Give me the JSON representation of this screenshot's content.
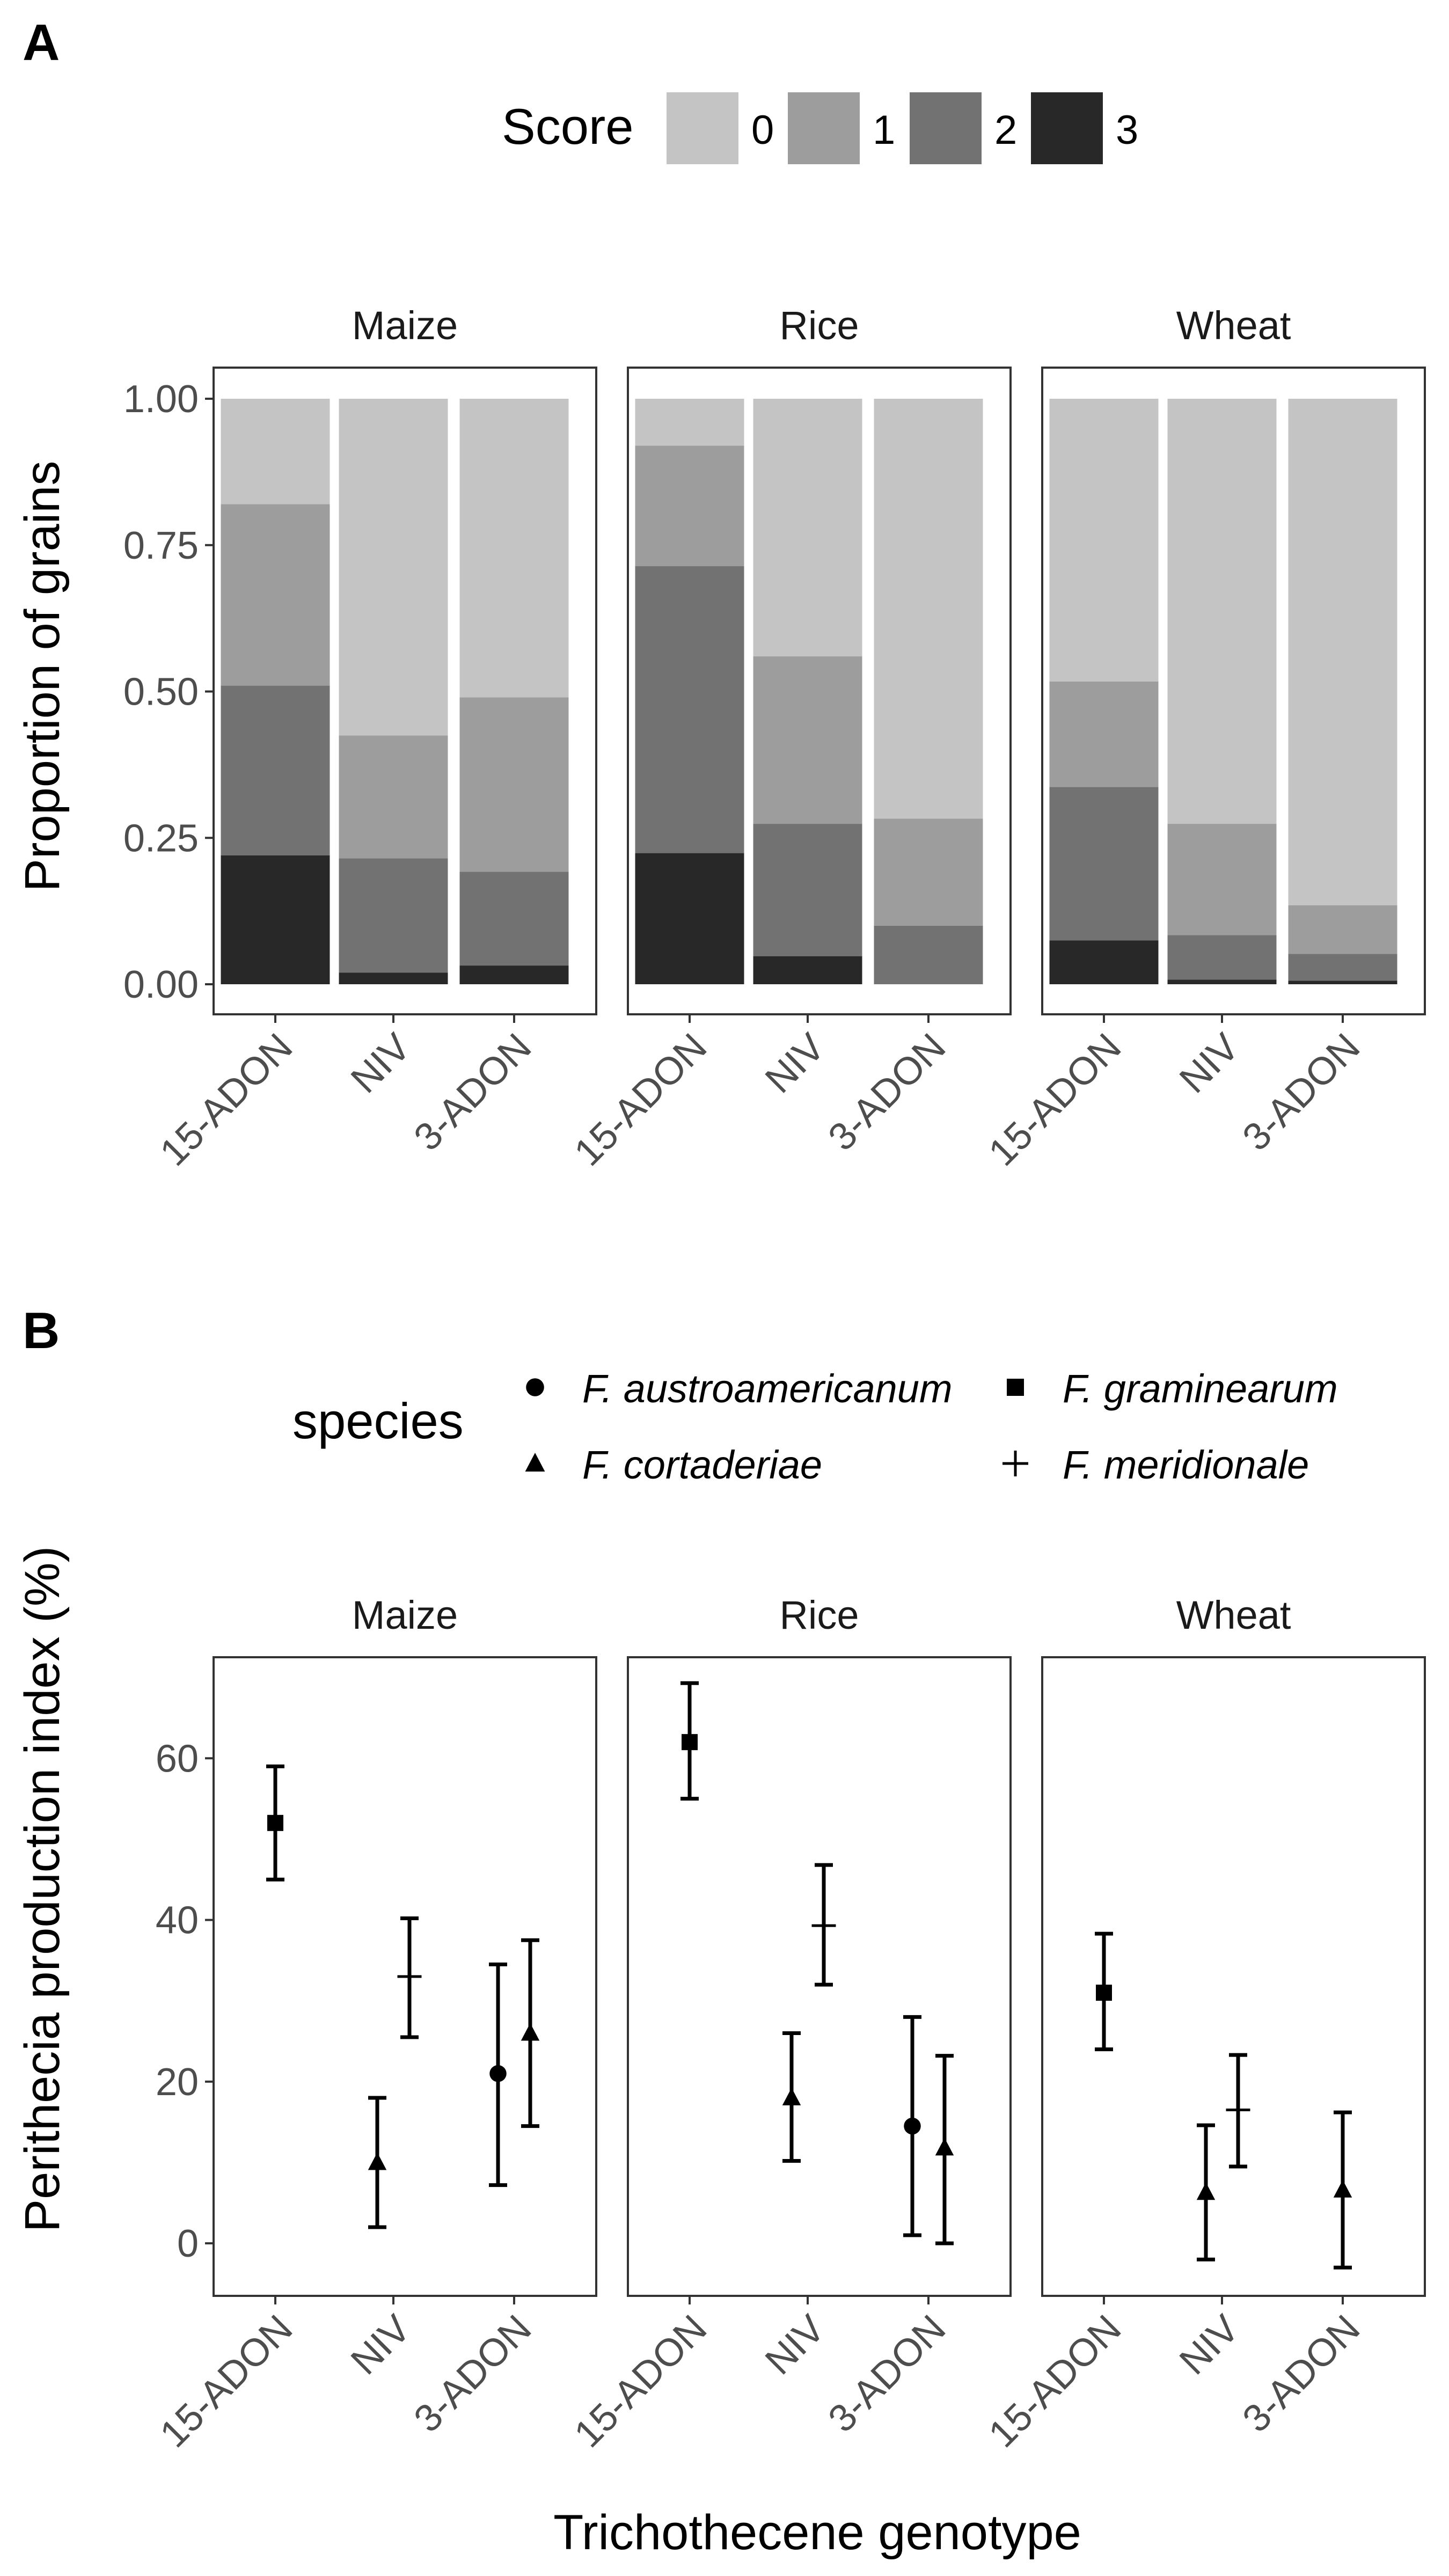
{
  "panels": {
    "a_label": "A",
    "b_label": "B"
  },
  "legend_a": {
    "title": "Score",
    "items": [
      {
        "label": "0",
        "color": "#c4c4c4"
      },
      {
        "label": "1",
        "color": "#9d9d9d"
      },
      {
        "label": "2",
        "color": "#727272"
      },
      {
        "label": "3",
        "color": "#282828"
      }
    ]
  },
  "legend_b": {
    "title": "species",
    "items": [
      {
        "label": "F. austroamericanum",
        "shape": "circle"
      },
      {
        "label": "F. graminearum",
        "shape": "square"
      },
      {
        "label": "F. cortaderiae",
        "shape": "triangle"
      },
      {
        "label": "F. meridionale",
        "shape": "plus"
      }
    ]
  },
  "chart_data": [
    {
      "type": "bar",
      "stacked": true,
      "ylabel": "Proportion of grains",
      "xlabel": "",
      "ylim": [
        0,
        1
      ],
      "yticks": [
        "0.00",
        "0.25",
        "0.50",
        "0.75",
        "1.00"
      ],
      "categories": [
        "15-ADON",
        "NIV",
        "3-ADON"
      ],
      "facets": [
        {
          "name": "Maize",
          "bars": [
            {
              "category": "15-ADON",
              "scores": {
                "3": 0.22,
                "2": 0.29,
                "1": 0.31,
                "0": 0.18
              }
            },
            {
              "category": "NIV",
              "scores": {
                "3": 0.02,
                "2": 0.195,
                "1": 0.21,
                "0": 0.575
              }
            },
            {
              "category": "3-ADON",
              "scores": {
                "3": 0.032,
                "2": 0.16,
                "1": 0.298,
                "0": 0.51
              }
            }
          ]
        },
        {
          "name": "Rice",
          "bars": [
            {
              "category": "15-ADON",
              "scores": {
                "3": 0.224,
                "2": 0.49,
                "1": 0.206,
                "0": 0.08
              }
            },
            {
              "category": "NIV",
              "scores": {
                "3": 0.048,
                "2": 0.226,
                "1": 0.286,
                "0": 0.44
              }
            },
            {
              "category": "3-ADON",
              "scores": {
                "3": 0.0,
                "2": 0.1,
                "1": 0.183,
                "0": 0.717
              }
            }
          ]
        },
        {
          "name": "Wheat",
          "bars": [
            {
              "category": "15-ADON",
              "scores": {
                "3": 0.075,
                "2": 0.262,
                "1": 0.18,
                "0": 0.483
              }
            },
            {
              "category": "NIV",
              "scores": {
                "3": 0.008,
                "2": 0.076,
                "1": 0.19,
                "0": 0.726
              }
            },
            {
              "category": "3-ADON",
              "scores": {
                "3": 0.006,
                "2": 0.046,
                "1": 0.083,
                "0": 0.865
              }
            }
          ]
        }
      ]
    },
    {
      "type": "scatter",
      "error_bars": true,
      "ylabel": "Perithecia production index (%)",
      "xlabel": "Trichothecene genotype",
      "ylim": [
        -6.5,
        72.5
      ],
      "yticks": [
        0,
        20,
        40,
        60
      ],
      "categories": [
        "15-ADON",
        "NIV",
        "3-ADON"
      ],
      "facets": [
        {
          "name": "Maize",
          "points": [
            {
              "category": "15-ADON",
              "species": "F. graminearum",
              "y": 52,
              "lo": 45,
              "hi": 59,
              "dodge": 0
            },
            {
              "category": "NIV",
              "species": "F. cortaderiae",
              "y": 10,
              "lo": 2,
              "hi": 18,
              "dodge": -1
            },
            {
              "category": "NIV",
              "species": "F. meridionale",
              "y": 33,
              "lo": 25.5,
              "hi": 40.2,
              "dodge": 1
            },
            {
              "category": "3-ADON",
              "species": "F. austroamericanum",
              "y": 21,
              "lo": 7.2,
              "hi": 34.5,
              "dodge": -1
            },
            {
              "category": "3-ADON",
              "species": "F. cortaderiae",
              "y": 26,
              "lo": 14.5,
              "hi": 37.5,
              "dodge": 1
            }
          ]
        },
        {
          "name": "Rice",
          "points": [
            {
              "category": "15-ADON",
              "species": "F. graminearum",
              "y": 62,
              "lo": 55,
              "hi": 69.3,
              "dodge": 0
            },
            {
              "category": "NIV",
              "species": "F. cortaderiae",
              "y": 18,
              "lo": 10.2,
              "hi": 26,
              "dodge": -1
            },
            {
              "category": "NIV",
              "species": "F. meridionale",
              "y": 39.3,
              "lo": 32,
              "hi": 46.8,
              "dodge": 1
            },
            {
              "category": "3-ADON",
              "species": "F. austroamericanum",
              "y": 14.5,
              "lo": 1,
              "hi": 28,
              "dodge": -1
            },
            {
              "category": "3-ADON",
              "species": "F. cortaderiae",
              "y": 11.8,
              "lo": 0,
              "hi": 23.2,
              "dodge": 1
            }
          ]
        },
        {
          "name": "Wheat",
          "points": [
            {
              "category": "15-ADON",
              "species": "F. graminearum",
              "y": 31,
              "lo": 24,
              "hi": 38.3,
              "dodge": 0
            },
            {
              "category": "NIV",
              "species": "F. cortaderiae",
              "y": 6.3,
              "lo": -2,
              "hi": 14.6,
              "dodge": -1
            },
            {
              "category": "NIV",
              "species": "F. meridionale",
              "y": 16.5,
              "lo": 9.5,
              "hi": 23.3,
              "dodge": 1
            },
            {
              "category": "3-ADON",
              "species": "F. cortaderiae",
              "y": 6.6,
              "lo": -3,
              "hi": 16.2,
              "dodge": 0
            }
          ]
        }
      ]
    }
  ]
}
